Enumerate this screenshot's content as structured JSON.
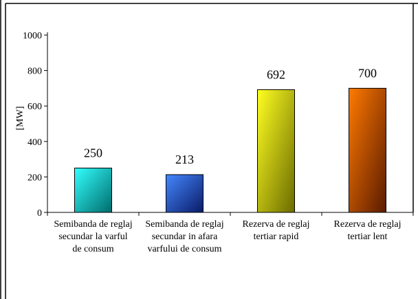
{
  "chart_data": {
    "type": "bar",
    "ylabel": "[MW]",
    "ylim": [
      0,
      1000
    ],
    "yticks": [
      0,
      200,
      400,
      600,
      800,
      1000
    ],
    "categories": [
      [
        "Semibanda de reglaj",
        "secundar la varful",
        "de consum"
      ],
      [
        "Semibanda de reglaj",
        "secundar in afara",
        "varfului de consum"
      ],
      [
        "Rezerva de reglaj",
        "tertiar rapid"
      ],
      [
        "Rezerva de reglaj",
        "tertiar lent"
      ]
    ],
    "values": [
      250,
      213,
      692,
      700
    ],
    "data_labels": [
      "250",
      "213",
      "692",
      "700"
    ],
    "bar_colors": [
      {
        "light": "#33ffff",
        "dark": "#006b6b"
      },
      {
        "light": "#4488ff",
        "dark": "#0a1a66"
      },
      {
        "light": "#ffff22",
        "dark": "#6b6b00"
      },
      {
        "light": "#ff7a00",
        "dark": "#5a1a00"
      }
    ],
    "grid": false,
    "legend": "none"
  }
}
